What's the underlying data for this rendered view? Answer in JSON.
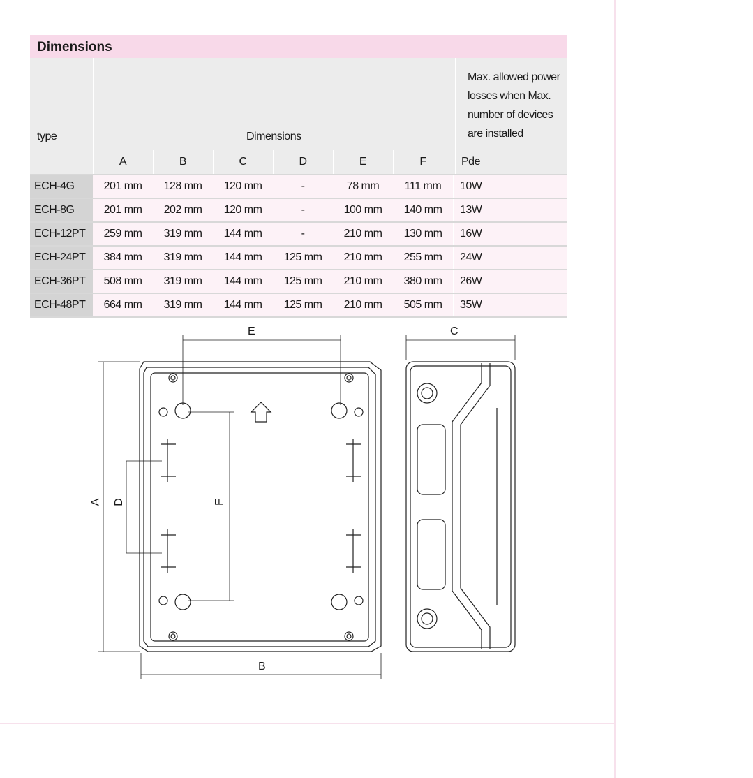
{
  "section_title": "Dimensions",
  "header": {
    "type": "type",
    "dimensions": "Dimensions",
    "columns": [
      "A",
      "B",
      "C",
      "D",
      "E",
      "F"
    ],
    "power_note": "Max. allowed power losses when Max. number of devices are installed",
    "pde": "Pde"
  },
  "rows": [
    {
      "type": "ECH-4G",
      "values": [
        "201 mm",
        "128 mm",
        "120 mm",
        "-",
        "78 mm",
        "111 mm"
      ],
      "pde": "10W"
    },
    {
      "type": "ECH-8G",
      "values": [
        "201 mm",
        "202 mm",
        "120 mm",
        "-",
        "100 mm",
        "140 mm"
      ],
      "pde": "13W"
    },
    {
      "type": "ECH-12PT",
      "values": [
        "259 mm",
        "319 mm",
        "144 mm",
        "-",
        "210 mm",
        "130 mm"
      ],
      "pde": "16W"
    },
    {
      "type": "ECH-24PT",
      "values": [
        "384 mm",
        "319 mm",
        "144 mm",
        "125 mm",
        "210 mm",
        "255 mm"
      ],
      "pde": "24W"
    },
    {
      "type": "ECH-36PT",
      "values": [
        "508 mm",
        "319 mm",
        "144 mm",
        "125 mm",
        "210 mm",
        "380 mm"
      ],
      "pde": "26W"
    },
    {
      "type": "ECH-48PT",
      "values": [
        "664 mm",
        "319 mm",
        "144 mm",
        "125 mm",
        "210 mm",
        "505 mm"
      ],
      "pde": "35W"
    }
  ],
  "drawing": {
    "labels": {
      "A": "A",
      "B": "B",
      "C": "C",
      "D": "D",
      "E": "E",
      "F": "F"
    }
  }
}
